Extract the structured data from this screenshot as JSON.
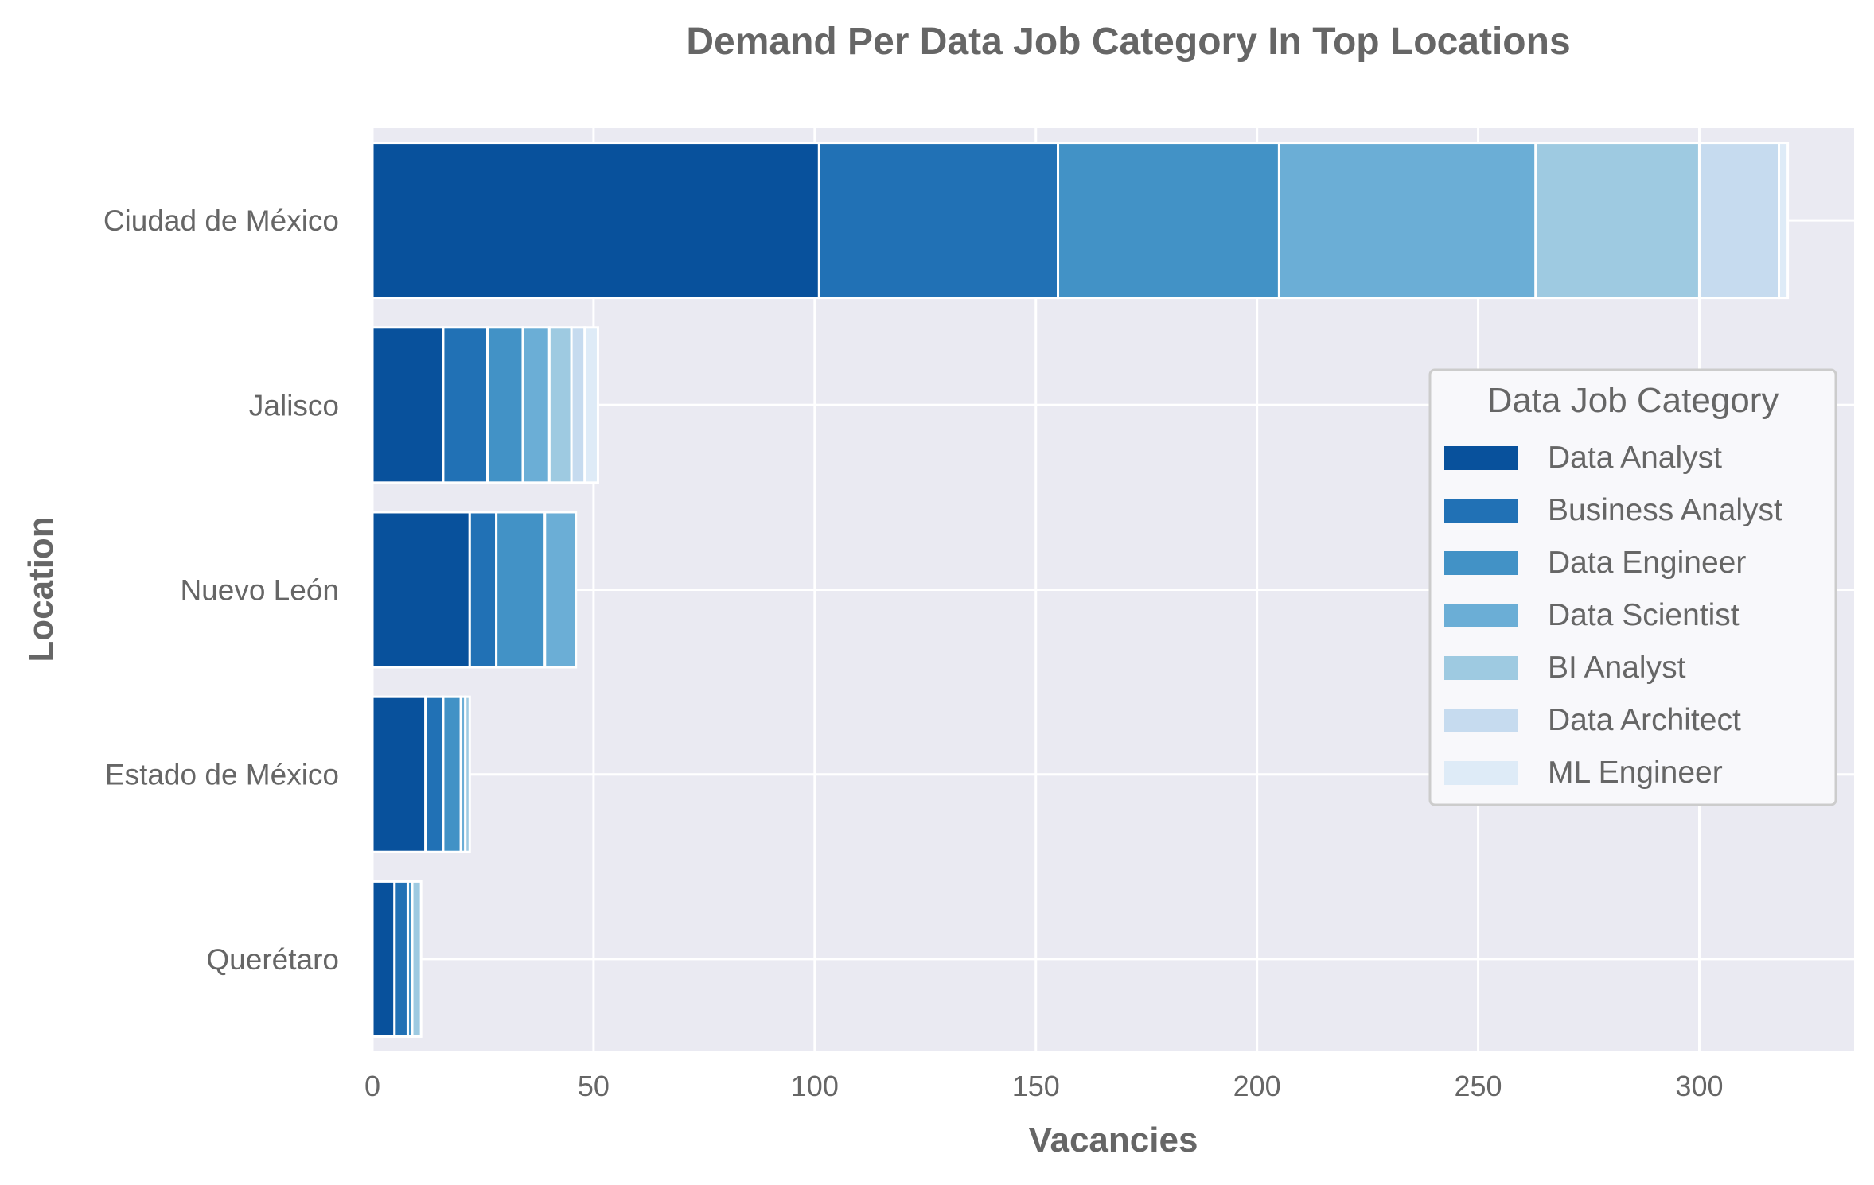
{
  "chart_data": {
    "type": "bar",
    "orientation": "horizontal",
    "stacked": true,
    "title": "Demand Per Data Job Category In Top Locations",
    "xlabel": "Vacancies",
    "ylabel": "Location",
    "xlim": [
      0,
      335
    ],
    "xticks": [
      0,
      50,
      100,
      150,
      200,
      250,
      300
    ],
    "categories": [
      "Ciudad de México",
      "Jalisco",
      "Nuevo León",
      "Estado de México",
      "Querétaro"
    ],
    "series": [
      {
        "name": "Data Analyst",
        "color": "#08519c",
        "values": [
          101,
          16,
          22,
          12,
          5
        ]
      },
      {
        "name": "Business Analyst",
        "color": "#2171b5",
        "values": [
          54,
          10,
          6,
          4,
          3
        ]
      },
      {
        "name": "Data Engineer",
        "color": "#4292c6",
        "values": [
          50,
          8,
          11,
          4,
          1
        ]
      },
      {
        "name": "Data Scientist",
        "color": "#6baed6",
        "values": [
          58,
          6,
          7,
          1,
          0
        ]
      },
      {
        "name": "BI Analyst",
        "color": "#9ecae1",
        "values": [
          37,
          5,
          0,
          1,
          2
        ]
      },
      {
        "name": "Data Architect",
        "color": "#c6dbef",
        "values": [
          18,
          3,
          0,
          0,
          0
        ]
      },
      {
        "name": "ML Engineer",
        "color": "#deebf7",
        "values": [
          2,
          3,
          0,
          0,
          0
        ]
      }
    ],
    "legend": {
      "title": "Data Job Category",
      "position": "right"
    },
    "grid": true,
    "colors": {
      "background": "#eaeaf2",
      "grid": "#ffffff",
      "text": "#666666"
    }
  }
}
